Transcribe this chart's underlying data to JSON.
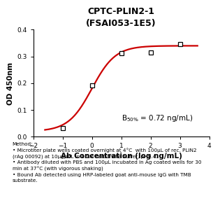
{
  "title_line1": "CPTC-PLIN2-1",
  "title_line2": "(FSAI053-1E5)",
  "xlabel": "Ab Concentration (log ng/mL)",
  "ylabel": "OD 450nm",
  "xlim": [
    -2,
    4
  ],
  "ylim": [
    0.0,
    0.4
  ],
  "xticks": [
    -2,
    -1,
    0,
    1,
    2,
    3,
    4
  ],
  "yticks": [
    0.0,
    0.1,
    0.2,
    0.3,
    0.4
  ],
  "data_x": [
    -1,
    0,
    1,
    2,
    3
  ],
  "data_y": [
    0.033,
    0.193,
    0.313,
    0.316,
    0.345
  ],
  "curve_color": "#cc0000",
  "marker_color": "black",
  "marker_facecolor": "white",
  "method_text": "Method:\n• Microtiter plate wells coated overnight at 4°C  with 100μL of rec. PLIN2\n(rAg 00092) at 10μg/mL in 0.2M carbonate buffer, pH9.4.\n• Antibody diluted with PBS and 100μL incubated in Ag coated wells for 30\nmin at 37°C (with vigorous shaking)\n• Bound Ab detected using HRP-labeled goat anti-mouse IgG with TMB\nsubstrate.",
  "background_color": "#ffffff",
  "title_fontsize": 9,
  "axis_label_fontsize": 7.5,
  "tick_fontsize": 6.5,
  "method_fontsize": 5.2,
  "annot_fontsize": 7.5
}
